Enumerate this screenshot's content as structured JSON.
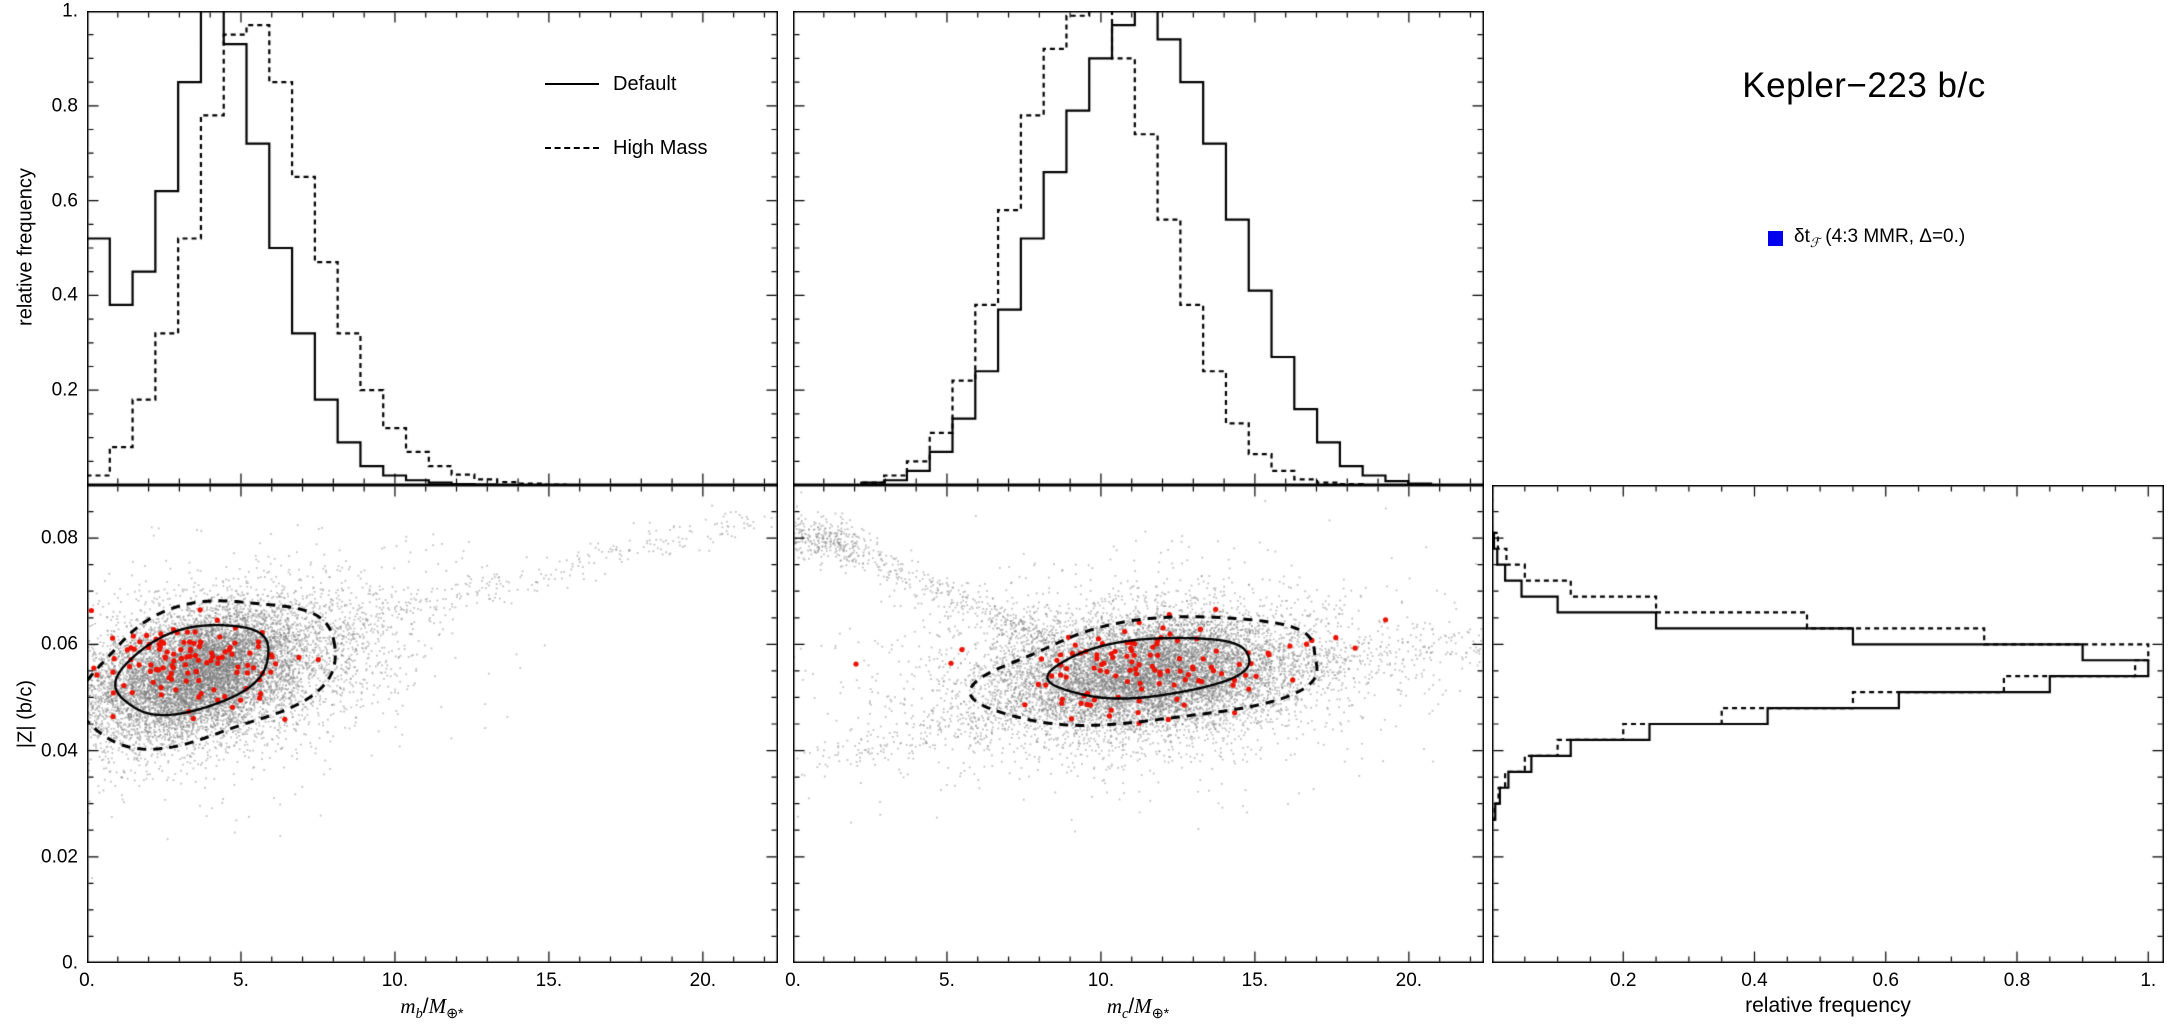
{
  "title": "Kepler−223 b/c",
  "legend_main": {
    "symbol_color": "#0000ee",
    "label_prefix": "δt",
    "label_sub": "ℱ",
    "label_suffix": " (4:3 MMR, Δ=0.)"
  },
  "hist_legend": {
    "solid_label": "Default",
    "dashed_label": "High Mass"
  },
  "axes": {
    "rel_freq_label": "relative frequency",
    "z_label": "|Z| (b/c)",
    "bottom_right_label": "relative frequency",
    "mb_label": {
      "m": "m",
      "sub": "b",
      "slash": "/",
      "M": "M",
      "sub2": "⊕*"
    },
    "mc_label": {
      "m": "m",
      "sub": "c",
      "slash": "/",
      "M": "M",
      "sub2": "⊕*"
    }
  },
  "chart_data": [
    {
      "id": "mb_hist",
      "type": "histogram",
      "orientation": "vertical",
      "xlabel": "",
      "ylabel": "relative frequency",
      "xlim": [
        0,
        22.44
      ],
      "ylim": [
        0,
        1.0
      ],
      "bin_start": 0,
      "bin_width": 0.74,
      "x_major": [
        0,
        5,
        10,
        15,
        20
      ],
      "x_minor_step": 1,
      "y_major": [
        0.2,
        0.4,
        0.6,
        0.8,
        1.0
      ],
      "y_minor_step": 0.05,
      "y_tick_labels": [
        [
          0.2,
          "0.2"
        ],
        [
          0.4,
          "0.4"
        ],
        [
          0.6,
          "0.6"
        ],
        [
          0.8,
          "0.8"
        ],
        [
          1.0,
          "1."
        ]
      ],
      "legend_position": "upper-right",
      "series": [
        {
          "name": "Default",
          "style": "solid",
          "values": [
            0.52,
            0.38,
            0.45,
            0.62,
            0.85,
            1.0,
            0.93,
            0.72,
            0.5,
            0.32,
            0.18,
            0.09,
            0.04,
            0.02,
            0.01,
            0.005,
            0.002,
            0.001,
            0,
            0,
            0,
            0,
            0,
            0,
            0,
            0,
            0,
            0,
            0,
            0
          ]
        },
        {
          "name": "High Mass",
          "style": "dashed",
          "values": [
            0.02,
            0.08,
            0.18,
            0.32,
            0.52,
            0.78,
            0.95,
            0.97,
            0.85,
            0.65,
            0.47,
            0.32,
            0.2,
            0.12,
            0.07,
            0.04,
            0.022,
            0.012,
            0.006,
            0.003,
            0.001,
            0,
            0,
            0,
            0,
            0,
            0,
            0,
            0,
            0
          ]
        }
      ]
    },
    {
      "id": "mc_hist",
      "type": "histogram",
      "orientation": "vertical",
      "xlabel": "",
      "ylabel": "",
      "xlim": [
        0,
        22.44
      ],
      "ylim": [
        0,
        1.0
      ],
      "bin_start": 0,
      "bin_width": 0.74,
      "x_major": [
        0,
        5,
        10,
        15,
        20
      ],
      "x_minor_step": 1,
      "y_major": [
        0.2,
        0.4,
        0.6,
        0.8,
        1.0
      ],
      "y_minor_step": 0.05,
      "series": [
        {
          "name": "Default",
          "style": "solid",
          "values": [
            0,
            0,
            0,
            0.005,
            0.01,
            0.03,
            0.07,
            0.14,
            0.24,
            0.37,
            0.52,
            0.66,
            0.79,
            0.9,
            0.97,
            1.0,
            0.94,
            0.85,
            0.72,
            0.56,
            0.41,
            0.27,
            0.16,
            0.09,
            0.04,
            0.02,
            0.008,
            0.003,
            0,
            0
          ]
        },
        {
          "name": "High Mass",
          "style": "dashed",
          "values": [
            0,
            0,
            0,
            0.005,
            0.02,
            0.05,
            0.11,
            0.22,
            0.38,
            0.58,
            0.78,
            0.92,
            0.99,
            1.0,
            0.9,
            0.74,
            0.56,
            0.38,
            0.24,
            0.13,
            0.065,
            0.03,
            0.012,
            0.005,
            0.002,
            0,
            0,
            0,
            0,
            0
          ]
        }
      ]
    },
    {
      "id": "mb_scatter",
      "type": "scatter",
      "xlabel": "m_b/M_⊕*",
      "ylabel": "|Z| (b/c)",
      "xlim": [
        0,
        22.44
      ],
      "ylim": [
        0,
        0.09
      ],
      "reflect_x": true,
      "x_major": [
        0,
        5,
        10,
        15,
        20
      ],
      "x_minor_step": 1,
      "y_major": [
        0.02,
        0.04,
        0.06,
        0.08
      ],
      "y_minor_step": 0.005,
      "x_tick_labels": [
        [
          0,
          "0."
        ],
        [
          5,
          "5."
        ],
        [
          10,
          "10."
        ],
        [
          15,
          "15."
        ],
        [
          20,
          "20."
        ]
      ],
      "y_tick_labels": [
        [
          0,
          "0."
        ],
        [
          0.02,
          "0.02"
        ],
        [
          0.04,
          "0.04"
        ],
        [
          0.06,
          "0.06"
        ],
        [
          0.08,
          "0.08"
        ]
      ],
      "clouds": [
        {
          "n": 7000,
          "cx": 3.6,
          "sx": 1.55,
          "cy": 0.0545,
          "sy": 0.0055,
          "corr": 0.0012,
          "seed": 11
        },
        {
          "n": 2500,
          "cx": 5.0,
          "sx": 2.6,
          "cy": 0.056,
          "sy": 0.007,
          "corr": 0.0011,
          "seed": 12
        },
        {
          "n": 900,
          "cx": 4.2,
          "sx": 3.4,
          "cy": 0.054,
          "sy": 0.0105,
          "corr": 0.001,
          "seed": 13
        }
      ],
      "streaks": [
        {
          "n": 320,
          "x1": 7.0,
          "y1": 0.0615,
          "x2": 21.6,
          "y2": 0.0842,
          "jx": 0.75,
          "jy": 0.0013,
          "pow": 1.25,
          "seed": 14
        }
      ],
      "red_points": {
        "n": 118,
        "cx": 3.3,
        "sx": 1.75,
        "cy": 0.0567,
        "sy": 0.0046,
        "color": "#ee1100",
        "seed": 15
      },
      "contours": {
        "solid": {
          "cx": 3.45,
          "cy": 0.0553,
          "rx": 2.55,
          "ry": 0.0077,
          "tilt": 0.0013,
          "seed": 31
        },
        "dashed": {
          "cx": 3.9,
          "cy": 0.0547,
          "rx": 4.15,
          "ry": 0.0128,
          "tilt": 0.0012,
          "seed": 32
        }
      }
    },
    {
      "id": "mc_scatter",
      "type": "scatter",
      "xlabel": "m_c/M_⊕*",
      "ylabel": "",
      "xlim": [
        0,
        22.44
      ],
      "ylim": [
        0,
        0.09
      ],
      "reflect_x": true,
      "x_major": [
        0,
        5,
        10,
        15,
        20
      ],
      "x_minor_step": 1,
      "y_major": [
        0.02,
        0.04,
        0.06,
        0.08
      ],
      "y_minor_step": 0.005,
      "x_tick_labels": [
        [
          0,
          "0."
        ],
        [
          5,
          "5."
        ],
        [
          10,
          "10."
        ],
        [
          15,
          "15."
        ],
        [
          20,
          "20."
        ]
      ],
      "clouds": [
        {
          "n": 7000,
          "cx": 11.6,
          "sx": 2.3,
          "cy": 0.0545,
          "sy": 0.005,
          "corr": 0.0004,
          "seed": 21
        },
        {
          "n": 2500,
          "cx": 11.0,
          "sx": 3.4,
          "cy": 0.054,
          "sy": 0.0075,
          "corr": 0.0004,
          "seed": 22
        },
        {
          "n": 900,
          "cx": 11.5,
          "sx": 4.4,
          "cy": 0.0545,
          "sy": 0.0105,
          "corr": 0.0003,
          "seed": 23
        },
        {
          "n": 260,
          "cx": 1.1,
          "sx": 0.75,
          "cy": 0.0795,
          "sy": 0.0022,
          "corr": -0.001,
          "seed": 25
        }
      ],
      "streaks": [
        {
          "n": 380,
          "x1": 8.0,
          "y1": 0.0615,
          "x2": 0.6,
          "y2": 0.0815,
          "jx": 0.55,
          "jy": 0.0011,
          "pow": 1.4,
          "seed": 24
        },
        {
          "n": 240,
          "x1": 8.0,
          "y1": 0.049,
          "x2": 1.2,
          "y2": 0.0375,
          "jx": 0.8,
          "jy": 0.0018,
          "pow": 1.3,
          "seed": 26
        },
        {
          "n": 260,
          "x1": 16.0,
          "y1": 0.0555,
          "x2": 22.2,
          "y2": 0.06,
          "jx": 0.8,
          "jy": 0.0022,
          "pow": 1.2,
          "seed": 27
        }
      ],
      "red_points": {
        "n": 118,
        "cx": 11.9,
        "sx": 2.7,
        "cy": 0.0552,
        "sy": 0.0045,
        "color": "#ee1100",
        "seed": 28
      },
      "contours": {
        "solid": {
          "cx": 11.6,
          "cy": 0.0556,
          "rx": 3.3,
          "ry": 0.0054,
          "tilt": 0.0006,
          "seed": 33
        },
        "dashed": {
          "cx": 11.7,
          "cy": 0.0548,
          "rx": 5.6,
          "ry": 0.0096,
          "tilt": 0.0006,
          "seed": 34
        }
      }
    },
    {
      "id": "z_hist",
      "type": "histogram",
      "orientation": "horizontal",
      "xlabel": "relative frequency",
      "ylabel": "",
      "xlim": [
        0,
        1.024
      ],
      "ylim": [
        0,
        0.09
      ],
      "bin_start": 0,
      "bin_width": 0.003,
      "x_major": [
        0.2,
        0.4,
        0.6,
        0.8,
        1.0
      ],
      "x_minor_step": 0.05,
      "y_major": [
        0.02,
        0.04,
        0.06,
        0.08
      ],
      "y_minor_step": 0.005,
      "x_tick_labels": [
        [
          0.2,
          "0.2"
        ],
        [
          0.4,
          "0.4"
        ],
        [
          0.6,
          "0.6"
        ],
        [
          0.8,
          "0.8"
        ],
        [
          1.0,
          "1."
        ]
      ],
      "series": [
        {
          "name": "Default",
          "style": "solid",
          "values": [
            0,
            0,
            0,
            0,
            0,
            0,
            0,
            0,
            0,
            0.005,
            0.012,
            0.025,
            0.06,
            0.12,
            0.24,
            0.42,
            0.62,
            0.85,
            1.0,
            0.9,
            0.55,
            0.25,
            0.1,
            0.045,
            0.02,
            0.008,
            0.003,
            0,
            0,
            0
          ]
        },
        {
          "name": "High Mass",
          "style": "dashed",
          "values": [
            0,
            0,
            0,
            0,
            0,
            0,
            0,
            0,
            0,
            0.004,
            0.01,
            0.02,
            0.05,
            0.1,
            0.2,
            0.35,
            0.55,
            0.78,
            0.98,
            1.0,
            0.75,
            0.48,
            0.25,
            0.12,
            0.05,
            0.022,
            0.009,
            0,
            0,
            0
          ]
        }
      ]
    }
  ]
}
